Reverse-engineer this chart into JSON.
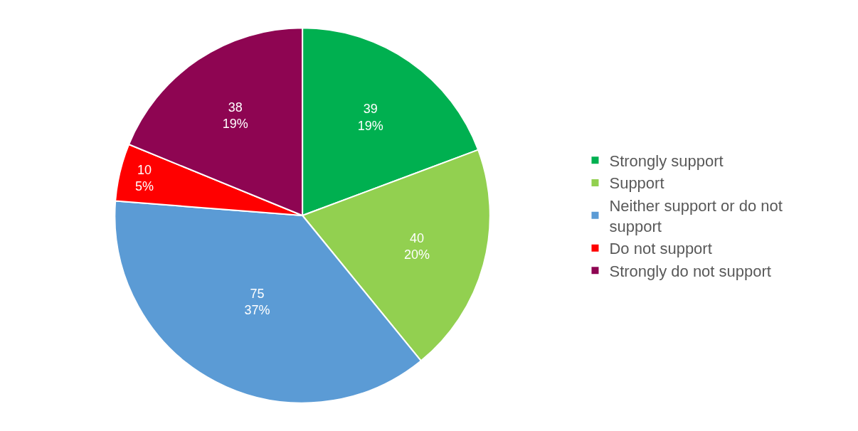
{
  "chart_data": {
    "type": "pie",
    "categories": [
      "Strongly support",
      "Support",
      "Neither support or do not support",
      "Do not support",
      "Strongly do not support"
    ],
    "values": [
      39,
      40,
      75,
      10,
      38
    ],
    "colors": [
      "#00b050",
      "#92d050",
      "#5b9bd5",
      "#ff0000",
      "#8e0552"
    ],
    "value_labels": [
      "39\n19%",
      "40\n20%",
      "75\n37%",
      "10\n5%",
      "38\n19%"
    ],
    "legend": "right"
  }
}
